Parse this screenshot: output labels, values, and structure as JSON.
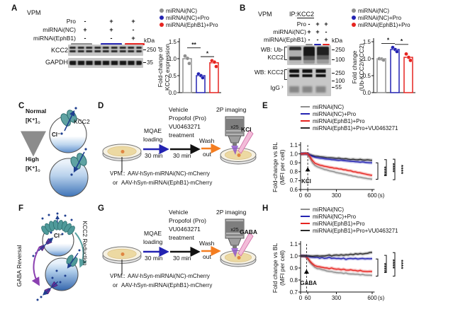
{
  "colors": {
    "gray": "#8f8f8f",
    "blue": "#2323b2",
    "red": "#e62420",
    "dark": "#2b2b2b",
    "magenta": "#ec008c",
    "orange": "#f47d20",
    "teal": "#4a9a9a",
    "purple": "#8a3fb0",
    "navy": "#1f3f8f"
  },
  "legend": {
    "nc": "miRNAi(NC)",
    "nc_pro": "miRNAi(NC)+Pro",
    "ephb1_pro": "miRNAi(EphB1)+Pro",
    "ephb1_pro_vu": "miRNAi(EphB1)+Pro+VU0463271"
  },
  "conditions": {
    "rows": [
      {
        "label": "Pro",
        "v": [
          "-",
          "+",
          "+"
        ]
      },
      {
        "label": "miRNAi(NC)",
        "v": [
          "+",
          "+",
          "-"
        ]
      },
      {
        "label": "miRNAi(EphB1)",
        "v": [
          "-",
          "-",
          "+"
        ]
      }
    ]
  },
  "panels": {
    "a": {
      "letter": "A",
      "region": "VPM",
      "blot1": "KCC2",
      "blot2": "GAPDH",
      "m1": "250",
      "m2": "35",
      "kda": "kDa"
    },
    "b": {
      "letter": "B",
      "region": "VPM",
      "ip_prefix": "IP:",
      "ip_target": "KCC2",
      "wb1a": "WB: Ub-",
      "wb1b": "KCC2",
      "wb2": "WB: KCC2",
      "igg": "IgG",
      "m250": "250",
      "m100": "100",
      "m55": "55",
      "kda": "kDa"
    },
    "c": {
      "letter": "C",
      "normal": "Normal",
      "k": "[K⁺]",
      "k_sub": "o",
      "high": "High",
      "kcc2": "KCC2",
      "cl": "Cl⁻"
    },
    "d": {
      "letter": "D",
      "stim": "KCl"
    },
    "e": {
      "letter": "E"
    },
    "f": {
      "letter": "F",
      "gaba_reversal": "GABA Reversal",
      "kcc2_reduction": "KCC2 Reduction",
      "cl": "Cl⁻"
    },
    "g": {
      "letter": "G",
      "stim": "GABA"
    },
    "h": {
      "letter": "H"
    }
  },
  "workflow": {
    "mqae": "MQAE",
    "loading": "loading",
    "min30": "30 min",
    "vehicle1": "Vehicle",
    "vehicle2": "Propofol (Pro)",
    "vehicle3": "VU0463271",
    "vehicle4": "treatment",
    "wash1": "Wash",
    "wash2": "out",
    "imaging": "2P imaging",
    "mag": "x25",
    "vpm": "VPM::",
    "aav_nc": "AAV-hSyn-miRNAi(NC)-mCherry",
    "or_word": "or",
    "aav_ephb1": "AAV-hSyn-miRNAi(EphB1)-mCherry"
  },
  "chart_data": {
    "barA": {
      "type": "bar",
      "title": "",
      "ylabel_lines": [
        "Fold-change of",
        "KCC2 expression"
      ],
      "ylim": [
        0,
        1.5
      ],
      "yticks": [
        "0.0",
        "0.5",
        "1.0",
        "1.5"
      ],
      "bars": [
        {
          "name": "miRNAi(NC)",
          "color": "#8f8f8f",
          "value": 1.0,
          "points": [
            1.08,
            1.01,
            0.86
          ]
        },
        {
          "name": "miRNAi(NC)+Pro",
          "color": "#2323b2",
          "value": 0.5,
          "points": [
            0.55,
            0.5,
            0.44
          ]
        },
        {
          "name": "miRNAi(EphB1)+Pro",
          "color": "#e62420",
          "value": 0.88,
          "points": [
            0.94,
            0.9,
            0.77
          ]
        }
      ],
      "sig": [
        {
          "a": 0,
          "b": 1,
          "y": 1.32,
          "label": "**"
        },
        {
          "a": 1,
          "b": 2,
          "y": 1.06,
          "label": "*"
        }
      ]
    },
    "barB": {
      "type": "bar",
      "title": "",
      "ylabel_lines": [
        "Fold change",
        "(Ub-KCC2/KCC2)"
      ],
      "ylim": [
        0,
        1.5
      ],
      "yticks": [
        "0.0",
        "0.5",
        "1.0",
        "1.5"
      ],
      "bars": [
        {
          "name": "miRNAi(NC)",
          "color": "#8f8f8f",
          "value": 1.0,
          "points": [
            1.0,
            0.99,
            0.96
          ]
        },
        {
          "name": "miRNAi(NC)+Pro",
          "color": "#2323b2",
          "value": 1.27,
          "points": [
            1.33,
            1.27,
            1.21
          ]
        },
        {
          "name": "miRNAi(EphB1)+Pro",
          "color": "#e62420",
          "value": 1.04,
          "points": [
            1.14,
            1.04,
            0.95
          ]
        }
      ],
      "sig": [
        {
          "a": 0,
          "b": 1,
          "y": 1.45,
          "label": "*"
        },
        {
          "a": 1,
          "b": 2,
          "y": 1.42,
          "label": "*"
        }
      ]
    },
    "lineE": {
      "type": "line",
      "ylabel_lines": [
        "Fold-change vs BL",
        "(MFI per cell)"
      ],
      "ylim": [
        0.6,
        1.1
      ],
      "yticks": [
        "0.6",
        "0.7",
        "0.8",
        "0.9",
        "1.0",
        "1.1"
      ],
      "xticks": [
        {
          "v": 0,
          "l": "0"
        },
        {
          "v": 60,
          "l": "60"
        },
        {
          "v": 300,
          "l": "300"
        },
        {
          "v": 600,
          "l": "600"
        }
      ],
      "xunit": "(s)",
      "xmax": 600,
      "xend": 620,
      "x_step": 20,
      "plot": {
        "l": 40,
        "r": 141,
        "t": 13,
        "b": 76
      },
      "event": {
        "label": "KCl",
        "x": 60,
        "ty": 0.803,
        "ly": 0.719,
        "color": "#ec008c"
      },
      "series": [
        {
          "name": "miRNAi(NC)",
          "color": "#8f8f8f",
          "values": [
            1.0,
            1.0,
            1.0,
            1.0,
            0.95,
            0.9,
            0.87,
            0.855,
            0.845,
            0.835,
            0.825,
            0.82,
            0.81,
            0.805,
            0.8,
            0.79,
            0.785,
            0.78,
            0.775,
            0.77,
            0.762,
            0.758,
            0.75,
            0.748,
            0.74,
            0.738,
            0.732,
            0.728,
            0.722,
            0.72,
            0.715
          ]
        },
        {
          "name": "miRNAi(EphB1)+Pro+VU0463271",
          "color": "#2b2b2b",
          "values": [
            1.0,
            1.0,
            1.005,
            1.0,
            0.99,
            0.982,
            0.975,
            0.972,
            0.968,
            0.965,
            0.962,
            0.958,
            0.956,
            0.955,
            0.952,
            0.948,
            0.952,
            0.946,
            0.944,
            0.945,
            0.94,
            0.936,
            0.94,
            0.935,
            0.933,
            0.938,
            0.932,
            0.93,
            0.934,
            0.93,
            0.928
          ]
        },
        {
          "name": "miRNAi(NC)+Pro",
          "color": "#2323b2",
          "values": [
            1.0,
            1.005,
            1.0,
            1.0,
            0.985,
            0.972,
            0.963,
            0.958,
            0.952,
            0.95,
            0.945,
            0.942,
            0.94,
            0.936,
            0.934,
            0.93,
            0.928,
            0.93,
            0.925,
            0.922,
            0.92,
            0.916,
            0.915,
            0.912,
            0.91,
            0.906,
            0.91,
            0.905,
            0.902,
            0.9,
            0.9
          ]
        },
        {
          "name": "miRNAi(EphB1)+Pro",
          "color": "#e62420",
          "values": [
            1.0,
            1.0,
            1.005,
            1.0,
            0.965,
            0.925,
            0.895,
            0.885,
            0.875,
            0.868,
            0.86,
            0.856,
            0.85,
            0.846,
            0.84,
            0.838,
            0.832,
            0.83,
            0.822,
            0.82,
            0.812,
            0.81,
            0.8,
            0.798,
            0.79,
            0.787,
            0.78,
            0.775,
            0.768,
            0.763,
            0.758
          ]
        }
      ],
      "sig": [
        {
          "y1": 0.9,
          "y2": 0.715,
          "label": "****"
        },
        {
          "y1": 0.935,
          "y2": 0.755,
          "label": "****"
        },
        {
          "y1": 0.94,
          "y2": 0.71,
          "label": "****"
        }
      ]
    },
    "lineH": {
      "type": "line",
      "ylabel_lines": [
        "Fold change vs BL",
        "(MFI per cell)"
      ],
      "ylim": [
        0.7,
        1.1
      ],
      "yticks": [
        "0.7",
        "0.8",
        "0.9",
        "1.0",
        "1.1"
      ],
      "xticks": [
        {
          "v": 0,
          "l": "0"
        },
        {
          "v": 60,
          "l": "60"
        },
        {
          "v": 300,
          "l": "300"
        },
        {
          "v": 600,
          "l": "600"
        }
      ],
      "xunit": "(s)",
      "xmax": 600,
      "xend": 620,
      "x_step": 20,
      "plot": {
        "l": 40,
        "r": 141,
        "t": 8,
        "b": 76
      },
      "event": {
        "label": "GABA",
        "x": 50,
        "ty": 0.853,
        "ly": 0.795,
        "color": "#ec008c"
      },
      "series": [
        {
          "name": "miRNAi(NC)",
          "color": "#8f8f8f",
          "values": [
            1.0,
            0.998,
            1.0,
            0.975,
            0.945,
            0.925,
            0.905,
            0.895,
            0.893,
            0.885,
            0.882,
            0.875,
            0.872,
            0.87,
            0.865,
            0.862,
            0.86,
            0.86,
            0.855,
            0.858,
            0.852,
            0.85,
            0.85,
            0.848,
            0.848,
            0.843,
            0.846,
            0.842,
            0.84,
            0.84,
            0.838
          ]
        },
        {
          "name": "miRNAi(EphB1)+Pro",
          "color": "#e62420",
          "values": [
            1.0,
            1.0,
            0.998,
            0.982,
            0.955,
            0.935,
            0.92,
            0.913,
            0.91,
            0.905,
            0.902,
            0.9,
            0.895,
            0.9,
            0.893,
            0.89,
            0.892,
            0.885,
            0.89,
            0.883,
            0.882,
            0.885,
            0.88,
            0.88,
            0.875,
            0.88,
            0.873,
            0.872,
            0.87,
            0.872,
            0.87
          ]
        },
        {
          "name": "miRNAi(NC)+Pro",
          "color": "#2323b2",
          "values": [
            1.0,
            1.002,
            0.998,
            1.0,
            0.992,
            0.99,
            0.988,
            0.99,
            0.982,
            0.987,
            0.98,
            0.982,
            0.988,
            0.98,
            0.982,
            0.979,
            0.98,
            0.977,
            0.982,
            0.972,
            0.978,
            0.98,
            0.977,
            0.98,
            0.975,
            0.978,
            0.98,
            0.976,
            0.978,
            0.977,
            0.978
          ]
        },
        {
          "name": "miRNAi(EphB1)+Pro+VU0463271",
          "color": "#2b2b2b",
          "values": [
            1.0,
            1.0,
            1.002,
            1.0,
            1.0,
            0.998,
            1.0,
            1.002,
            0.998,
            1.0,
            1.0,
            1.003,
            1.008,
            1.0,
            1.006,
            1.008,
            1.005,
            1.01,
            1.006,
            1.01,
            1.008,
            1.015,
            1.01,
            1.018,
            1.015,
            1.02,
            1.016,
            1.02,
            1.022,
            1.028,
            1.03
          ]
        }
      ],
      "sig": [
        {
          "y1": 0.975,
          "y2": 0.832,
          "label": "****"
        },
        {
          "y1": 1.005,
          "y2": 0.862,
          "label": "****"
        },
        {
          "y1": 1.028,
          "y2": 0.832,
          "label": "****"
        }
      ]
    }
  }
}
